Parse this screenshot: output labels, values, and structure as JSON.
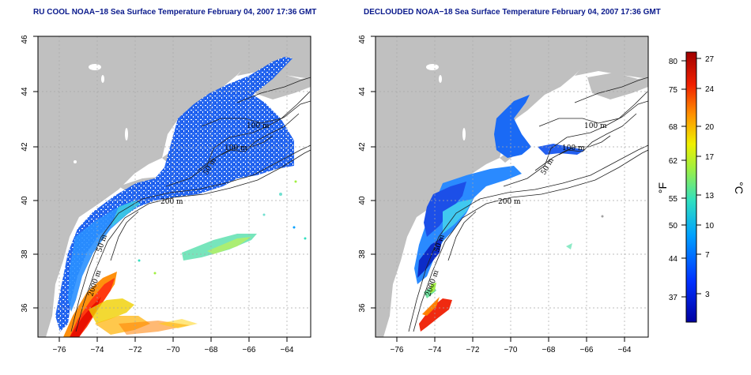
{
  "panels": [
    {
      "title": "RU COOL NOAA−18 Sea Surface Temperature February 04, 2007 17:36 GMT",
      "x_ticks": [
        "−76",
        "−74",
        "−72",
        "−70",
        "−68",
        "−66",
        "−64"
      ],
      "y_ticks": [
        "36",
        "38",
        "40",
        "42",
        "44",
        "46"
      ],
      "contour_labels": [
        "100 m",
        "100 m",
        "50 m",
        "200 m",
        "50 m",
        "2000 m"
      ]
    },
    {
      "title": "DECLOUDED NOAA−18 Sea Surface Temperature February 04, 2007 17:36 GMT",
      "x_ticks": [
        "−76",
        "−74",
        "−72",
        "−70",
        "−68",
        "−66",
        "−64"
      ],
      "y_ticks": [
        "36",
        "38",
        "40",
        "42",
        "44",
        "46"
      ],
      "contour_labels": [
        "100 m",
        "100 m",
        "50 m",
        "200 m",
        "50 m",
        "2000 m"
      ]
    }
  ],
  "colorbar": {
    "unit_f": "°F",
    "unit_c": "°C",
    "f_ticks": [
      "80",
      "75",
      "68",
      "62",
      "55",
      "50",
      "44",
      "37"
    ],
    "c_ticks": [
      "27",
      "24",
      "20",
      "17",
      "13",
      "10",
      "7",
      "3"
    ],
    "colors": [
      "#0000a0",
      "#0030ff",
      "#00a0ff",
      "#30e0c0",
      "#a0f040",
      "#f0f000",
      "#ff9000",
      "#f02000",
      "#a00000"
    ]
  },
  "colors": {
    "land": "#c0c0c0",
    "ocean": "#ffffff",
    "title": "#0a1a8c"
  }
}
